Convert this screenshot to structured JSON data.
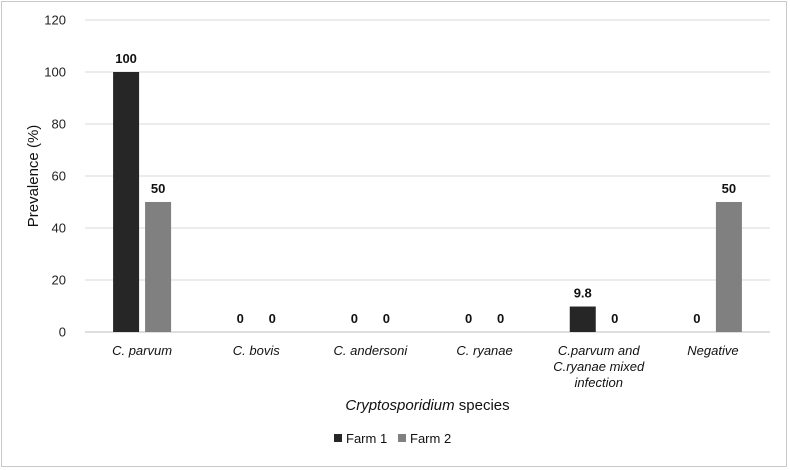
{
  "chart_data": {
    "type": "bar",
    "categories": [
      [
        "C. parvum"
      ],
      [
        "C. bovis"
      ],
      [
        "C. andersoni"
      ],
      [
        "C. ryanae"
      ],
      [
        "C.parvum and",
        "C.ryanae mixed",
        "infection"
      ],
      [
        "Negative"
      ]
    ],
    "series": [
      {
        "name": "Farm 1",
        "values": [
          100,
          0,
          0,
          0,
          9.8,
          0
        ],
        "labels": [
          "100",
          "0",
          "0",
          "0",
          "9.8",
          "0"
        ],
        "color": "#262626"
      },
      {
        "name": "Farm 2",
        "values": [
          50,
          0,
          0,
          0,
          0,
          50
        ],
        "labels": [
          "50",
          "0",
          "0",
          "0",
          "0",
          "50"
        ],
        "color": "#808080"
      }
    ],
    "ylabel": "Prevalence (%)",
    "xlabel": {
      "italic": "Cryptosporidium",
      "rest": " species"
    },
    "ylim": [
      0,
      120
    ],
    "yticks": [
      0,
      20,
      40,
      60,
      80,
      100,
      120
    ],
    "grid": true,
    "legend": "bottom-center"
  }
}
